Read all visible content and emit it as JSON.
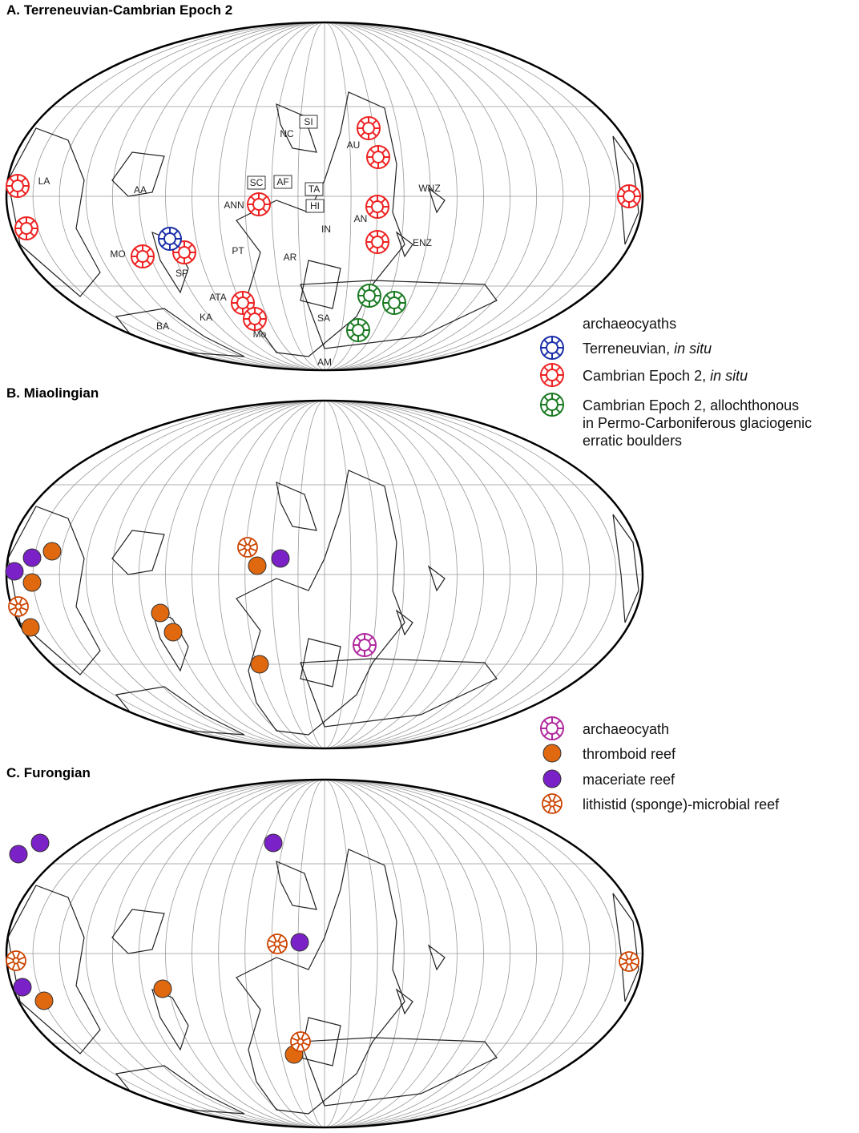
{
  "panels": [
    {
      "title": "A. Terreneuvian-Cambrian Epoch 2",
      "labels": [
        "LA",
        "AA",
        "SI",
        "NC",
        "SC",
        "AF",
        "TA",
        "HI",
        "ANN",
        "IN",
        "AN",
        "AU",
        "WNZ",
        "ENZ",
        "PT",
        "AR",
        "MO",
        "SP",
        "ATA",
        "KA",
        "BA",
        "Mo",
        "SA",
        "AM"
      ]
    },
    {
      "title": "B. Miaolingian",
      "labels": []
    },
    {
      "title": "C. Furongian",
      "labels": []
    }
  ],
  "legend_a": {
    "heading": "archaeocyaths",
    "items": [
      {
        "text": "Terreneuvian,",
        "italic": "in situ"
      },
      {
        "text": "Cambrian Epoch 2,",
        "italic": "in situ"
      },
      {
        "lines": [
          "Cambrian Epoch 2, allochthonous",
          "in Permo-Carboniferous glaciogenic",
          "erratic boulders"
        ]
      }
    ]
  },
  "legend_b": {
    "items": [
      "archaeocyath",
      "thromboid reef",
      "maceriate reef",
      "lithistid (sponge)-microbial reef"
    ]
  }
}
